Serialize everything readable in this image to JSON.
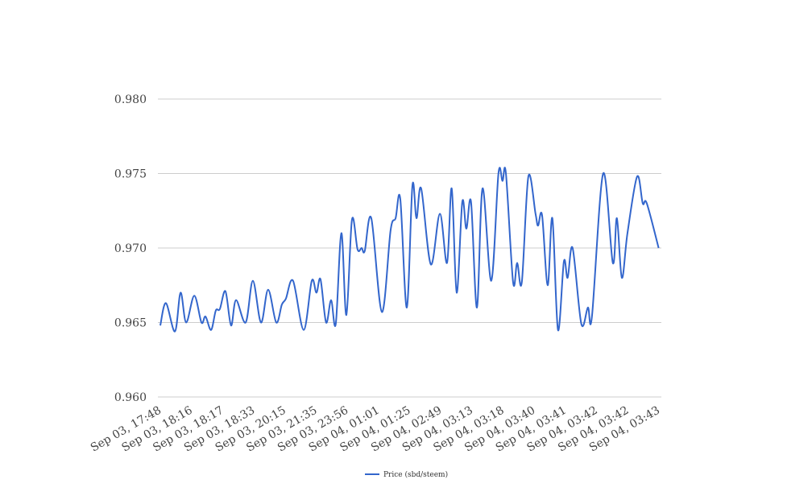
{
  "chart_data": {
    "type": "line",
    "title": "",
    "xlabel": "",
    "ylabel": "",
    "ylim": [
      0.96,
      0.98
    ],
    "xlim": [
      0,
      16
    ],
    "grid": true,
    "legend_position": "bottom",
    "y_ticks": [
      "0.960",
      "0.965",
      "0.970",
      "0.975",
      "0.980"
    ],
    "y_tick_values": [
      0.96,
      0.965,
      0.97,
      0.975,
      0.98
    ],
    "categories": [
      "Sep 03, 17:48",
      "Sep 03, 18:16",
      "Sep 03, 18:17",
      "Sep 03, 18:33",
      "Sep 03, 20:15",
      "Sep 03, 21:35",
      "Sep 03, 23:56",
      "Sep 04, 01:01",
      "Sep 04, 01:25",
      "Sep 04, 02:49",
      "Sep 04, 03:13",
      "Sep 04, 03:18",
      "Sep 04, 03:40",
      "Sep 04, 03:41",
      "Sep 04, 03:42",
      "Sep 04, 03:42",
      "Sep 04, 03:43"
    ],
    "series": [
      {
        "name": "Price (sbd/steem)",
        "color": "#3366cc",
        "x": [
          0,
          0.18,
          0.47,
          0.65,
          0.83,
          1.09,
          1.32,
          1.45,
          1.63,
          1.78,
          1.91,
          2.09,
          2.27,
          2.43,
          2.74,
          2.97,
          3.23,
          3.46,
          3.72,
          3.9,
          4.03,
          4.26,
          4.6,
          4.86,
          5.01,
          5.14,
          5.32,
          5.48,
          5.63,
          5.81,
          5.97,
          6.15,
          6.33,
          6.46,
          6.56,
          6.77,
          7.11,
          7.39,
          7.55,
          7.7,
          7.91,
          8.09,
          8.22,
          8.37,
          8.68,
          8.97,
          9.2,
          9.35,
          9.51,
          9.69,
          9.82,
          9.97,
          10.16,
          10.34,
          10.62,
          10.85,
          10.98,
          11.09,
          11.32,
          11.45,
          11.6,
          11.81,
          12.04,
          12.12,
          12.25,
          12.43,
          12.58,
          12.76,
          12.95,
          13.07,
          13.23,
          13.51,
          13.72,
          13.85,
          14.21,
          14.52,
          14.65,
          14.81,
          14.99,
          15.3,
          15.48,
          15.61,
          15.99
        ],
        "values": [
          0.9648,
          0.9663,
          0.9644,
          0.967,
          0.965,
          0.9668,
          0.965,
          0.9654,
          0.9645,
          0.9658,
          0.9659,
          0.9671,
          0.9648,
          0.9665,
          0.965,
          0.9678,
          0.965,
          0.9672,
          0.965,
          0.9662,
          0.9666,
          0.9678,
          0.9645,
          0.9678,
          0.967,
          0.9679,
          0.965,
          0.9665,
          0.9649,
          0.971,
          0.9655,
          0.9719,
          0.9699,
          0.97,
          0.9698,
          0.972,
          0.9657,
          0.9712,
          0.972,
          0.9733,
          0.966,
          0.9742,
          0.972,
          0.974,
          0.9689,
          0.9723,
          0.969,
          0.974,
          0.967,
          0.9731,
          0.9713,
          0.9731,
          0.966,
          0.974,
          0.9678,
          0.975,
          0.9745,
          0.975,
          0.9677,
          0.969,
          0.9677,
          0.9748,
          0.9723,
          0.9715,
          0.9722,
          0.9675,
          0.972,
          0.9645,
          0.9691,
          0.968,
          0.97,
          0.9649,
          0.966,
          0.9654,
          0.975,
          0.969,
          0.972,
          0.968,
          0.971,
          0.9748,
          0.973,
          0.973,
          0.97
        ]
      }
    ]
  }
}
